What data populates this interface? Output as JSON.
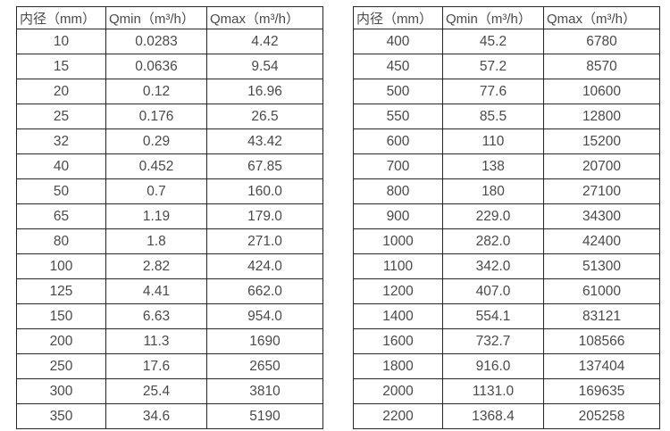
{
  "page": {
    "background": "#ffffff",
    "text_color": "#4a4a4a",
    "border_color": "#262626"
  },
  "tables": [
    {
      "name": "small-diameter-flow-table",
      "headers": [
        "内径（mm）",
        "Qmin（m³/h）",
        "Qmax（m³/h）"
      ],
      "rows": [
        [
          "10",
          "0.0283",
          "4.42"
        ],
        [
          "15",
          "0.0636",
          "9.54"
        ],
        [
          "20",
          "0.12",
          "16.96"
        ],
        [
          "25",
          "0.176",
          "26.5"
        ],
        [
          "32",
          "0.29",
          "43.42"
        ],
        [
          "40",
          "0.452",
          "67.85"
        ],
        [
          "50",
          "0.7",
          "160.0"
        ],
        [
          "65",
          "1.19",
          "179.0"
        ],
        [
          "80",
          "1.8",
          "271.0"
        ],
        [
          "100",
          "2.82",
          "424.0"
        ],
        [
          "125",
          "4.41",
          "662.0"
        ],
        [
          "150",
          "6.63",
          "954.0"
        ],
        [
          "200",
          "11.3",
          "1690"
        ],
        [
          "250",
          "17.6",
          "2650"
        ],
        [
          "300",
          "25.4",
          "3810"
        ],
        [
          "350",
          "34.6",
          "5190"
        ]
      ]
    },
    {
      "name": "large-diameter-flow-table",
      "headers": [
        "内径（mm）",
        "Qmin（m³/h）",
        "Qmax（m³/h）"
      ],
      "rows": [
        [
          "400",
          "45.2",
          "6780"
        ],
        [
          "450",
          "57.2",
          "8570"
        ],
        [
          "500",
          "77.6",
          "10600"
        ],
        [
          "550",
          "85.5",
          "12800"
        ],
        [
          "600",
          "110",
          "15200"
        ],
        [
          "700",
          "138",
          "20700"
        ],
        [
          "800",
          "180",
          "27100"
        ],
        [
          "900",
          "229.0",
          "34300"
        ],
        [
          "1000",
          "282.0",
          "42400"
        ],
        [
          "1100",
          "342.0",
          "51300"
        ],
        [
          "1200",
          "407.0",
          "61000"
        ],
        [
          "1400",
          "554.1",
          "83121"
        ],
        [
          "1600",
          "732.7",
          "108566"
        ],
        [
          "1800",
          "916.0",
          "137404"
        ],
        [
          "2000",
          "1131.0",
          "169635"
        ],
        [
          "2200",
          "1368.4",
          "205258"
        ]
      ]
    }
  ]
}
